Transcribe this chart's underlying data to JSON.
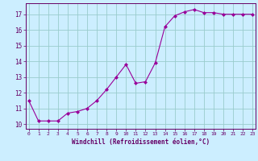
{
  "x": [
    0,
    1,
    2,
    3,
    4,
    5,
    6,
    7,
    8,
    9,
    10,
    11,
    12,
    13,
    14,
    15,
    16,
    17,
    18,
    19,
    20,
    21,
    22,
    23
  ],
  "y": [
    11.5,
    10.2,
    10.2,
    10.2,
    10.7,
    10.8,
    11.0,
    11.5,
    12.2,
    13.0,
    13.8,
    12.6,
    12.7,
    13.9,
    16.2,
    16.9,
    17.15,
    17.3,
    17.1,
    17.1,
    17.0,
    17.0,
    17.0,
    17.0
  ],
  "line_color": "#990099",
  "marker": "D",
  "marker_size": 2,
  "bg_color": "#cceeff",
  "grid_color": "#99cccc",
  "xlabel": "Windchill (Refroidissement éolien,°C)",
  "xlabel_color": "#660066",
  "tick_color": "#660066",
  "ylim": [
    9.7,
    17.7
  ],
  "yticks": [
    10,
    11,
    12,
    13,
    14,
    15,
    16,
    17
  ],
  "xticks": [
    0,
    1,
    2,
    3,
    4,
    5,
    6,
    7,
    8,
    9,
    10,
    11,
    12,
    13,
    14,
    15,
    16,
    17,
    18,
    19,
    20,
    21,
    22,
    23
  ],
  "xlim": [
    -0.3,
    23.3
  ]
}
